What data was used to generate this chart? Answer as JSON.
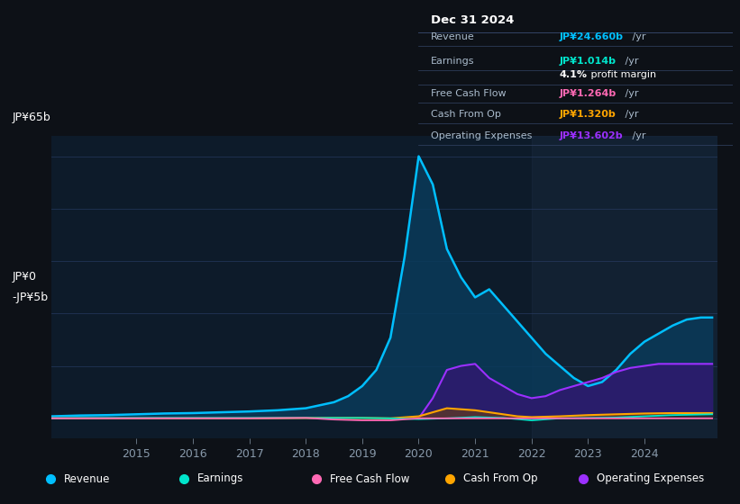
{
  "bg_color": "#0d1117",
  "plot_bg_color": "#0d1b2a",
  "grid_color": "#1e3050",
  "title_color": "#ffffff",
  "y_label_top": "JP¥65b",
  "y_label_zero": "JP¥0",
  "y_label_neg": "-JP¥5b",
  "ylim": [
    -5,
    70
  ],
  "yticks": [
    -5,
    0,
    13,
    26,
    39,
    52,
    65
  ],
  "xlim": [
    2013.5,
    2025.3
  ],
  "xticks": [
    2015,
    2016,
    2017,
    2018,
    2019,
    2020,
    2021,
    2022,
    2023,
    2024
  ],
  "revenue_color": "#00bfff",
  "earnings_color": "#00e5cc",
  "fcf_color": "#ff69b4",
  "cashfromop_color": "#ffa500",
  "opex_color": "#8b00ff",
  "revenue_fill": "#0a3a5a",
  "opex_fill": "#2d1b6e",
  "info_box": {
    "date": "Dec 31 2024",
    "revenue_val": "JP¥24.660b",
    "earnings_val": "JP¥1.014b",
    "margin": "4.1%",
    "fcf_val": "JP¥1.264b",
    "cashop_val": "JP¥1.320b",
    "opex_val": "JP¥13.602b",
    "revenue_color": "#00bfff",
    "earnings_color": "#00e5cc",
    "fcf_color": "#ff69b4",
    "cashop_color": "#ffa500",
    "opex_color": "#9b30ff"
  },
  "legend": [
    {
      "label": "Revenue",
      "color": "#00bfff"
    },
    {
      "label": "Earnings",
      "color": "#00e5cc"
    },
    {
      "label": "Free Cash Flow",
      "color": "#ff69b4"
    },
    {
      "label": "Cash From Op",
      "color": "#ffa500"
    },
    {
      "label": "Operating Expenses",
      "color": "#9b30ff"
    }
  ],
  "revenue_x": [
    2013.5,
    2014.0,
    2014.5,
    2015.0,
    2015.5,
    2016.0,
    2016.5,
    2017.0,
    2017.5,
    2018.0,
    2018.5,
    2018.75,
    2019.0,
    2019.25,
    2019.5,
    2019.75,
    2020.0,
    2020.25,
    2020.5,
    2020.75,
    2021.0,
    2021.25,
    2021.5,
    2021.75,
    2022.0,
    2022.25,
    2022.5,
    2022.75,
    2023.0,
    2023.25,
    2023.5,
    2023.75,
    2024.0,
    2024.25,
    2024.5,
    2024.75,
    2025.0,
    2025.2
  ],
  "revenue_y": [
    0.5,
    0.7,
    0.8,
    1.0,
    1.2,
    1.3,
    1.5,
    1.7,
    2.0,
    2.5,
    4.0,
    5.5,
    8.0,
    12.0,
    20.0,
    40.0,
    65.0,
    58.0,
    42.0,
    35.0,
    30.0,
    32.0,
    28.0,
    24.0,
    20.0,
    16.0,
    13.0,
    10.0,
    8.0,
    9.0,
    12.0,
    16.0,
    19.0,
    21.0,
    23.0,
    24.5,
    25.0,
    25.0
  ],
  "earnings_x": [
    2013.5,
    2014.0,
    2015.0,
    2016.0,
    2017.0,
    2018.0,
    2018.5,
    2019.0,
    2019.5,
    2020.0,
    2020.5,
    2021.0,
    2021.5,
    2022.0,
    2022.5,
    2023.0,
    2023.5,
    2024.0,
    2024.5,
    2025.2
  ],
  "earnings_y": [
    0.0,
    0.1,
    0.1,
    0.1,
    0.1,
    0.1,
    0.1,
    0.1,
    0.0,
    -0.2,
    0.0,
    0.3,
    0.1,
    -0.5,
    0.0,
    0.1,
    0.2,
    0.5,
    0.8,
    1.0
  ],
  "fcf_x": [
    2013.5,
    2014.0,
    2015.0,
    2016.0,
    2017.0,
    2018.0,
    2018.5,
    2019.0,
    2019.5,
    2020.0,
    2020.5,
    2021.0,
    2021.5,
    2022.0,
    2022.5,
    2023.0,
    2023.5,
    2024.0,
    2024.5,
    2025.2
  ],
  "fcf_y": [
    0.0,
    0.0,
    0.0,
    0.0,
    0.0,
    0.1,
    -0.3,
    -0.5,
    -0.5,
    0.0,
    0.0,
    0.0,
    0.0,
    0.0,
    0.0,
    0.0,
    0.0,
    0.0,
    0.0,
    0.0
  ],
  "cashop_x": [
    2013.5,
    2014.0,
    2015.0,
    2016.0,
    2017.0,
    2018.0,
    2018.5,
    2019.0,
    2019.5,
    2020.0,
    2020.5,
    2021.0,
    2021.25,
    2021.5,
    2021.75,
    2022.0,
    2022.5,
    2023.0,
    2023.5,
    2024.0,
    2024.5,
    2025.2
  ],
  "cashop_y": [
    0.0,
    0.0,
    0.0,
    0.0,
    0.0,
    0.1,
    0.1,
    0.1,
    0.0,
    0.5,
    2.5,
    2.0,
    1.5,
    1.0,
    0.5,
    0.3,
    0.5,
    0.8,
    1.0,
    1.2,
    1.3,
    1.3
  ],
  "opex_x": [
    2020.0,
    2020.25,
    2020.5,
    2020.75,
    2021.0,
    2021.25,
    2021.5,
    2021.75,
    2022.0,
    2022.25,
    2022.5,
    2022.75,
    2023.0,
    2023.25,
    2023.5,
    2023.75,
    2024.0,
    2024.25,
    2024.5,
    2024.75,
    2025.0,
    2025.2
  ],
  "opex_y": [
    0.0,
    5.0,
    12.0,
    13.0,
    13.5,
    10.0,
    8.0,
    6.0,
    5.0,
    5.5,
    7.0,
    8.0,
    9.0,
    10.0,
    11.5,
    12.5,
    13.0,
    13.5,
    13.5,
    13.5,
    13.5,
    13.5
  ]
}
